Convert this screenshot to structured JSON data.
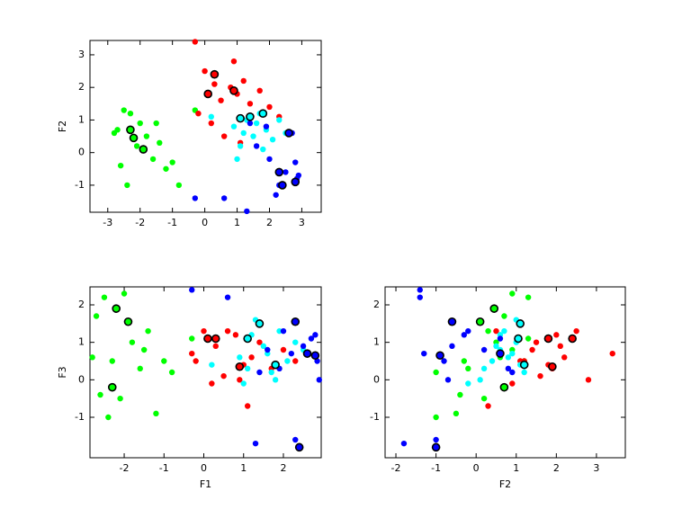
{
  "chart_data": [
    {
      "type": "scatter",
      "ylabel": "F2",
      "xlim": [
        -3.55,
        3.6
      ],
      "ylim": [
        -1.83,
        3.44
      ],
      "xticks": [
        -3,
        -2,
        -1,
        0,
        1,
        2,
        3
      ],
      "yticks": [
        -1,
        0,
        1,
        2,
        3
      ],
      "series": [
        {
          "color": "#00ff00",
          "x": [
            -2.7,
            -2.5,
            -2.3,
            -2.0,
            -1.8,
            -1.6,
            -1.4,
            -1.2,
            -1.0,
            -0.8,
            -2.6,
            -2.4,
            -2.1,
            -1.5,
            -0.3,
            -2.8
          ],
          "y": [
            0.7,
            1.3,
            1.2,
            0.9,
            0.5,
            -0.2,
            0.3,
            -0.5,
            -0.3,
            -1.0,
            -0.4,
            -1.0,
            0.2,
            0.9,
            1.3,
            0.6
          ]
        },
        {
          "color": "#ff0000",
          "x": [
            -0.3,
            0.0,
            0.3,
            0.5,
            0.8,
            1.0,
            1.2,
            1.4,
            1.7,
            2.0,
            0.2,
            -0.2,
            0.6,
            1.1,
            2.3,
            0.9
          ],
          "y": [
            3.4,
            2.5,
            2.1,
            1.6,
            2.0,
            1.8,
            2.2,
            1.5,
            1.9,
            1.4,
            0.9,
            1.2,
            0.5,
            0.3,
            1.1,
            2.8
          ]
        },
        {
          "color": "#00ffff",
          "x": [
            0.9,
            1.1,
            1.3,
            1.5,
            1.7,
            1.9,
            2.1,
            1.0,
            1.6,
            2.3,
            0.2,
            1.2,
            1.8,
            2.5
          ],
          "y": [
            0.8,
            0.2,
            1.0,
            0.5,
            1.2,
            0.7,
            0.4,
            -0.2,
            0.9,
            1.0,
            1.1,
            0.6,
            0.1,
            0.6
          ]
        },
        {
          "color": "#0000ff",
          "x": [
            -0.3,
            0.6,
            1.3,
            2.3,
            2.5,
            2.7,
            2.9,
            1.9,
            2.2,
            2.8,
            1.6,
            2.0,
            2.85,
            1.4
          ],
          "y": [
            -1.4,
            -1.4,
            -1.8,
            -1.0,
            -0.6,
            0.6,
            -0.7,
            0.8,
            -1.3,
            -0.3,
            0.2,
            -0.2,
            -0.8,
            0.9
          ]
        },
        {
          "color": "#00ff00",
          "edgecolor": "#000000",
          "x": [
            -2.2,
            -1.9,
            -2.3
          ],
          "y": [
            0.45,
            0.1,
            0.7
          ]
        },
        {
          "color": "#ff0000",
          "edgecolor": "#000000",
          "x": [
            0.1,
            0.3,
            0.9
          ],
          "y": [
            1.8,
            2.4,
            1.9
          ]
        },
        {
          "color": "#00ffff",
          "edgecolor": "#000000",
          "x": [
            1.1,
            1.4,
            1.8
          ],
          "y": [
            1.05,
            1.1,
            1.2
          ]
        },
        {
          "color": "#0000ff",
          "edgecolor": "#000000",
          "x": [
            2.4,
            2.3,
            2.6,
            2.8
          ],
          "y": [
            -1.0,
            -0.6,
            0.6,
            -0.9
          ]
        }
      ]
    },
    {
      "type": "scatter",
      "xlabel": "F1",
      "ylabel": "F3",
      "xlim": [
        -2.86,
        2.95
      ],
      "ylim": [
        -2.08,
        2.48
      ],
      "xticks": [
        -2,
        -1,
        0,
        1,
        2
      ],
      "yticks": [
        -1,
        0,
        1,
        2
      ],
      "series": [
        {
          "color": "#00ff00",
          "x": [
            -2.7,
            -2.5,
            -2.3,
            -2.0,
            -1.8,
            -1.6,
            -1.4,
            -1.2,
            -1.0,
            -0.8,
            -2.6,
            -2.4,
            -2.1,
            -1.5,
            -0.3,
            -2.8
          ],
          "y": [
            1.7,
            2.2,
            0.5,
            2.3,
            1.0,
            0.3,
            1.3,
            -0.9,
            0.5,
            0.2,
            -0.4,
            -1.0,
            -0.5,
            0.8,
            1.1,
            0.6
          ]
        },
        {
          "color": "#ff0000",
          "x": [
            -0.3,
            0.0,
            0.3,
            0.5,
            0.8,
            1.0,
            1.2,
            1.4,
            1.7,
            2.0,
            0.2,
            -0.2,
            0.6,
            1.1,
            2.3,
            0.9
          ],
          "y": [
            0.7,
            1.3,
            0.9,
            0.1,
            1.2,
            0.4,
            0.6,
            1.0,
            0.3,
            0.8,
            -0.1,
            0.5,
            1.3,
            -0.7,
            0.5,
            0.0
          ]
        },
        {
          "color": "#00ffff",
          "x": [
            0.9,
            1.1,
            1.3,
            1.5,
            1.7,
            1.9,
            2.1,
            1.0,
            1.6,
            2.3,
            0.2,
            1.2,
            1.8,
            2.5
          ],
          "y": [
            0.6,
            0.3,
            1.6,
            0.9,
            0.2,
            1.3,
            0.5,
            -0.1,
            0.7,
            1.0,
            0.4,
            1.2,
            0.0,
            0.8
          ]
        },
        {
          "color": "#0000ff",
          "x": [
            -0.3,
            0.6,
            1.3,
            2.3,
            2.5,
            2.7,
            2.9,
            1.9,
            2.2,
            2.8,
            1.6,
            2.0,
            2.85,
            1.4
          ],
          "y": [
            2.4,
            2.2,
            -1.7,
            -1.6,
            0.9,
            1.1,
            0.0,
            0.3,
            0.7,
            1.2,
            0.8,
            1.3,
            0.5,
            0.2
          ]
        },
        {
          "color": "#00ff00",
          "edgecolor": "#000000",
          "x": [
            -2.2,
            -1.9,
            -2.3
          ],
          "y": [
            1.9,
            1.55,
            -0.2
          ]
        },
        {
          "color": "#ff0000",
          "edgecolor": "#000000",
          "x": [
            0.1,
            0.3,
            0.9
          ],
          "y": [
            1.1,
            1.1,
            0.35
          ]
        },
        {
          "color": "#00ffff",
          "edgecolor": "#000000",
          "x": [
            1.1,
            1.4,
            1.8
          ],
          "y": [
            1.1,
            1.5,
            0.4
          ]
        },
        {
          "color": "#0000ff",
          "edgecolor": "#000000",
          "x": [
            2.4,
            2.3,
            2.6,
            2.8
          ],
          "y": [
            -1.8,
            1.55,
            0.7,
            0.65
          ]
        }
      ]
    },
    {
      "type": "scatter",
      "xlabel": "F2",
      "xlim": [
        -2.27,
        3.72
      ],
      "ylim": [
        -2.08,
        2.48
      ],
      "xticks": [
        -2,
        -1,
        0,
        1,
        2,
        3
      ],
      "yticks": [
        -1,
        0,
        1,
        2
      ],
      "series": [
        {
          "color": "#00ff00",
          "x": [
            0.7,
            1.3,
            1.2,
            0.9,
            0.5,
            -0.2,
            0.3,
            -0.5,
            -0.3,
            -1.0,
            -0.4,
            -1.0,
            0.2,
            0.9,
            1.3,
            0.6
          ],
          "y": [
            1.7,
            2.2,
            0.5,
            2.3,
            1.0,
            0.3,
            1.3,
            -0.9,
            0.5,
            0.2,
            -0.4,
            -1.0,
            -0.5,
            0.8,
            1.1,
            0.6
          ]
        },
        {
          "color": "#ff0000",
          "x": [
            3.4,
            2.5,
            2.1,
            1.6,
            2.0,
            1.8,
            2.2,
            1.5,
            1.9,
            1.4,
            0.9,
            1.2,
            0.5,
            0.3,
            1.1,
            2.8
          ],
          "y": [
            0.7,
            1.3,
            0.9,
            0.1,
            1.2,
            0.4,
            0.6,
            1.0,
            0.3,
            0.8,
            -0.1,
            0.5,
            1.3,
            -0.7,
            0.5,
            0.0
          ]
        },
        {
          "color": "#00ffff",
          "x": [
            0.8,
            0.2,
            1.0,
            0.5,
            1.2,
            0.7,
            0.4,
            -0.2,
            0.9,
            1.0,
            1.1,
            0.6,
            0.1,
            0.6
          ],
          "y": [
            0.6,
            0.3,
            1.6,
            0.9,
            0.2,
            1.3,
            0.5,
            -0.1,
            0.7,
            1.0,
            0.4,
            1.2,
            0.0,
            0.8
          ]
        },
        {
          "color": "#0000ff",
          "x": [
            -1.4,
            -1.4,
            -1.8,
            -1.0,
            -0.6,
            0.6,
            -0.7,
            0.8,
            -1.3,
            -0.3,
            0.2,
            -0.2,
            -0.8,
            0.9
          ],
          "y": [
            2.4,
            2.2,
            -1.7,
            -1.6,
            0.9,
            1.1,
            0.0,
            0.3,
            0.7,
            1.2,
            0.8,
            1.3,
            0.5,
            0.2
          ]
        },
        {
          "color": "#00ff00",
          "edgecolor": "#000000",
          "x": [
            0.45,
            0.1,
            0.7
          ],
          "y": [
            1.9,
            1.55,
            -0.2
          ]
        },
        {
          "color": "#ff0000",
          "edgecolor": "#000000",
          "x": [
            1.8,
            2.4,
            1.9
          ],
          "y": [
            1.1,
            1.1,
            0.35
          ]
        },
        {
          "color": "#00ffff",
          "edgecolor": "#000000",
          "x": [
            1.05,
            1.1,
            1.2
          ],
          "y": [
            1.1,
            1.5,
            0.4
          ]
        },
        {
          "color": "#0000ff",
          "edgecolor": "#000000",
          "x": [
            -1.0,
            -0.6,
            0.6,
            -0.9
          ],
          "y": [
            -1.8,
            1.55,
            0.7,
            0.65
          ]
        }
      ]
    }
  ]
}
